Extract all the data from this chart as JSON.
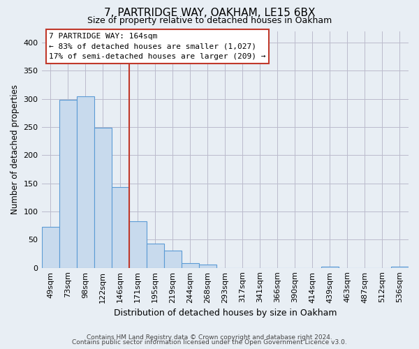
{
  "title": "7, PARTRIDGE WAY, OAKHAM, LE15 6BX",
  "subtitle": "Size of property relative to detached houses in Oakham",
  "xlabel": "Distribution of detached houses by size in Oakham",
  "ylabel": "Number of detached properties",
  "bin_labels": [
    "49sqm",
    "73sqm",
    "98sqm",
    "122sqm",
    "146sqm",
    "171sqm",
    "195sqm",
    "219sqm",
    "244sqm",
    "268sqm",
    "293sqm",
    "317sqm",
    "341sqm",
    "366sqm",
    "390sqm",
    "414sqm",
    "439sqm",
    "463sqm",
    "487sqm",
    "512sqm",
    "536sqm"
  ],
  "bar_heights": [
    73,
    299,
    305,
    249,
    144,
    83,
    43,
    31,
    8,
    6,
    0,
    0,
    0,
    0,
    0,
    0,
    2,
    0,
    0,
    0,
    2
  ],
  "bar_color": "#c8daed",
  "bar_edge_color": "#5b9bd5",
  "ylim": [
    0,
    420
  ],
  "yticks": [
    0,
    50,
    100,
    150,
    200,
    250,
    300,
    350,
    400
  ],
  "annotation_title": "7 PARTRIDGE WAY: 164sqm",
  "annotation_line1": "← 83% of detached houses are smaller (1,027)",
  "annotation_line2": "17% of semi-detached houses are larger (209) →",
  "vline_color": "#c0392b",
  "vline_x": 4.5,
  "footer1": "Contains HM Land Registry data © Crown copyright and database right 2024.",
  "footer2": "Contains public sector information licensed under the Open Government Licence v3.0.",
  "fig_background_color": "#e8eef4",
  "plot_background": "#e8eef4",
  "grid_color": "#bbbbcc"
}
